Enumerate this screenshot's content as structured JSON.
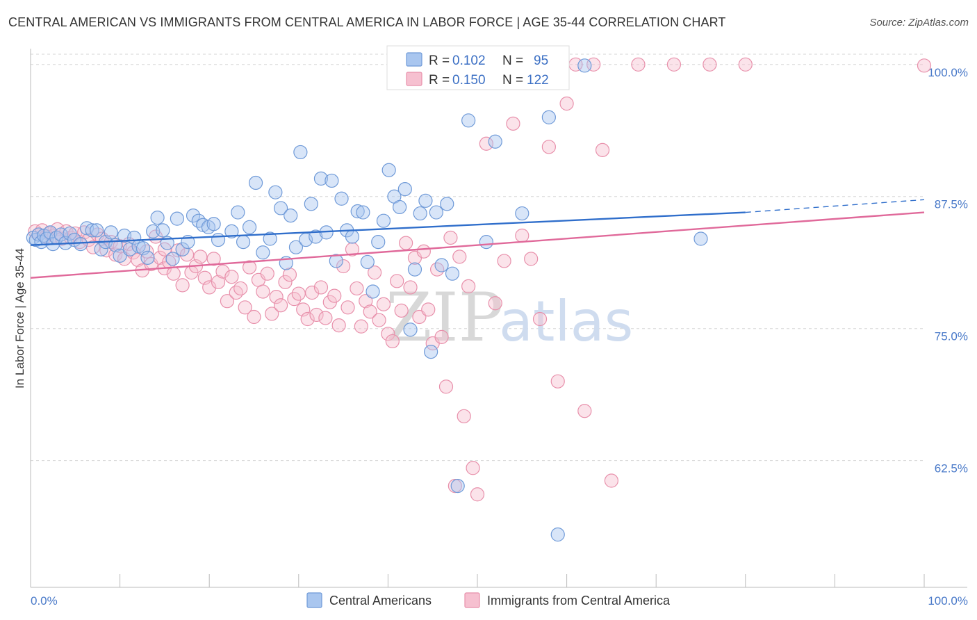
{
  "header": {
    "title": "CENTRAL AMERICAN VS IMMIGRANTS FROM CENTRAL AMERICA IN LABOR FORCE | AGE 35-44 CORRELATION CHART",
    "source": "Source: ZipAtlas.com"
  },
  "watermark": {
    "zip": "ZIP",
    "atlas": "atlas"
  },
  "colors": {
    "blue_fill": "#a9c6ef",
    "blue_stroke": "#6f9ad8",
    "blue_line": "#2f6ecb",
    "pink_fill": "#f6c0d0",
    "pink_stroke": "#e890ab",
    "pink_line": "#e0699a",
    "grid": "#d6d6d6",
    "tick_label": "#4a7ac9"
  },
  "chart_data": {
    "type": "scatter",
    "title": "CENTRAL AMERICAN VS IMMIGRANTS FROM CENTRAL AMERICA IN LABOR FORCE | AGE 35-44 CORRELATION CHART",
    "ylabel": "In Labor Force | Age 35-44",
    "xlabel": "",
    "xlim": [
      0,
      100
    ],
    "ylim": [
      50.5,
      101.5
    ],
    "x_tick_labels": [
      {
        "value": 0,
        "label": "0.0%"
      },
      {
        "value": 100,
        "label": "100.0%"
      }
    ],
    "y_tick_labels": [
      {
        "value": 100,
        "label": "100.0%"
      },
      {
        "value": 87.5,
        "label": "87.5%"
      },
      {
        "value": 75,
        "label": "75.0%"
      },
      {
        "value": 62.5,
        "label": "62.5%"
      }
    ],
    "grid": "horizontal dashed",
    "legend_position": "top-center",
    "series": [
      {
        "name": "Central Americans",
        "color": "#a9c6ef",
        "R": "0.102",
        "N": "95",
        "trend": {
          "x": [
            0,
            80
          ],
          "y": [
            82.9,
            86.0
          ],
          "dashed_extension_to": [
            100,
            87.2
          ]
        },
        "points": [
          [
            0.3,
            83.6
          ],
          [
            0.6,
            83.4
          ],
          [
            0.9,
            83.9
          ],
          [
            1.2,
            83.2
          ],
          [
            1.5,
            83.8
          ],
          [
            1.8,
            83.5
          ],
          [
            2.2,
            84.1
          ],
          [
            2.5,
            83.0
          ],
          [
            2.9,
            83.6
          ],
          [
            3.4,
            83.9
          ],
          [
            3.9,
            83.1
          ],
          [
            4.4,
            84.0
          ],
          [
            4.9,
            83.4
          ],
          [
            5.6,
            83.0
          ],
          [
            6.3,
            84.5
          ],
          [
            6.9,
            84.3
          ],
          [
            7.4,
            84.3
          ],
          [
            7.9,
            82.5
          ],
          [
            8.4,
            83.2
          ],
          [
            9.0,
            84.1
          ],
          [
            9.5,
            82.9
          ],
          [
            10.0,
            81.9
          ],
          [
            10.5,
            83.8
          ],
          [
            11.1,
            82.5
          ],
          [
            11.6,
            83.6
          ],
          [
            12.1,
            82.8
          ],
          [
            12.6,
            82.6
          ],
          [
            13.1,
            81.7
          ],
          [
            13.7,
            84.2
          ],
          [
            14.2,
            85.5
          ],
          [
            14.8,
            84.3
          ],
          [
            15.3,
            83.1
          ],
          [
            15.9,
            81.6
          ],
          [
            16.4,
            85.4
          ],
          [
            17.0,
            82.5
          ],
          [
            17.6,
            83.2
          ],
          [
            18.2,
            85.7
          ],
          [
            18.8,
            85.2
          ],
          [
            19.3,
            84.8
          ],
          [
            19.9,
            84.6
          ],
          [
            20.5,
            84.9
          ],
          [
            21.0,
            83.4
          ],
          [
            22.5,
            84.2
          ],
          [
            23.2,
            86.0
          ],
          [
            23.8,
            83.2
          ],
          [
            24.5,
            84.6
          ],
          [
            25.2,
            88.8
          ],
          [
            26.0,
            82.2
          ],
          [
            26.8,
            83.5
          ],
          [
            27.4,
            87.9
          ],
          [
            28.0,
            86.4
          ],
          [
            28.6,
            81.2
          ],
          [
            29.1,
            85.7
          ],
          [
            29.7,
            82.7
          ],
          [
            30.2,
            91.7
          ],
          [
            30.8,
            83.4
          ],
          [
            31.4,
            86.8
          ],
          [
            31.9,
            83.7
          ],
          [
            32.5,
            89.2
          ],
          [
            33.1,
            84.1
          ],
          [
            33.7,
            89.0
          ],
          [
            34.2,
            81.4
          ],
          [
            34.8,
            87.3
          ],
          [
            35.4,
            84.3
          ],
          [
            36.0,
            83.7
          ],
          [
            36.6,
            86.1
          ],
          [
            37.2,
            86.0
          ],
          [
            37.7,
            81.3
          ],
          [
            38.3,
            78.5
          ],
          [
            38.9,
            83.2
          ],
          [
            39.5,
            85.2
          ],
          [
            40.1,
            90.0
          ],
          [
            40.7,
            87.5
          ],
          [
            41.3,
            86.5
          ],
          [
            41.9,
            88.2
          ],
          [
            42.5,
            74.9
          ],
          [
            43.0,
            80.6
          ],
          [
            43.6,
            85.9
          ],
          [
            44.2,
            87.1
          ],
          [
            44.8,
            72.8
          ],
          [
            45.4,
            86.0
          ],
          [
            46.0,
            81.0
          ],
          [
            46.6,
            86.8
          ],
          [
            47.2,
            80.2
          ],
          [
            47.8,
            60.1
          ],
          [
            49.0,
            94.7
          ],
          [
            51.0,
            83.2
          ],
          [
            52.0,
            92.7
          ],
          [
            55.0,
            85.9
          ],
          [
            56.0,
            100.2
          ],
          [
            57.0,
            99.9
          ],
          [
            58.0,
            95.0
          ],
          [
            59.0,
            55.5
          ],
          [
            62.0,
            99.9
          ],
          [
            75.0,
            83.5
          ]
        ]
      },
      {
        "name": "Immigrants from Central America",
        "color": "#f6c0d0",
        "R": "0.150",
        "N": "122",
        "trend": {
          "x": [
            0,
            100
          ],
          "y": [
            79.8,
            86.0
          ]
        },
        "points": [
          [
            0.5,
            84.2
          ],
          [
            0.9,
            83.9
          ],
          [
            1.3,
            84.3
          ],
          [
            1.7,
            83.7
          ],
          [
            2.1,
            84.0
          ],
          [
            2.6,
            83.8
          ],
          [
            3.0,
            84.4
          ],
          [
            3.5,
            83.5
          ],
          [
            4.0,
            84.2
          ],
          [
            4.5,
            83.6
          ],
          [
            5.0,
            84.0
          ],
          [
            5.5,
            83.2
          ],
          [
            6.0,
            84.1
          ],
          [
            6.5,
            83.4
          ],
          [
            7.0,
            82.7
          ],
          [
            7.5,
            83.9
          ],
          [
            8.0,
            83.5
          ],
          [
            8.5,
            82.4
          ],
          [
            9.0,
            83.2
          ],
          [
            9.5,
            82.0
          ],
          [
            10.0,
            82.8
          ],
          [
            10.5,
            81.6
          ],
          [
            11.0,
            83.0
          ],
          [
            11.5,
            82.2
          ],
          [
            12.0,
            81.5
          ],
          [
            12.5,
            80.5
          ],
          [
            13.0,
            82.3
          ],
          [
            13.5,
            81.1
          ],
          [
            14.0,
            83.7
          ],
          [
            14.5,
            81.7
          ],
          [
            15.0,
            80.7
          ],
          [
            15.5,
            81.3
          ],
          [
            16.0,
            80.2
          ],
          [
            16.5,
            82.4
          ],
          [
            17.0,
            79.1
          ],
          [
            17.5,
            82.0
          ],
          [
            18.0,
            80.3
          ],
          [
            18.5,
            80.9
          ],
          [
            19.0,
            81.8
          ],
          [
            19.5,
            79.8
          ],
          [
            20.0,
            78.9
          ],
          [
            20.5,
            81.6
          ],
          [
            21.0,
            79.4
          ],
          [
            21.5,
            80.4
          ],
          [
            22.0,
            77.6
          ],
          [
            22.5,
            79.9
          ],
          [
            23.0,
            78.4
          ],
          [
            23.5,
            78.8
          ],
          [
            24.0,
            77.0
          ],
          [
            24.5,
            80.8
          ],
          [
            25.0,
            76.1
          ],
          [
            25.5,
            79.6
          ],
          [
            26.0,
            78.5
          ],
          [
            26.5,
            80.2
          ],
          [
            27.0,
            76.4
          ],
          [
            27.5,
            78.0
          ],
          [
            28.0,
            77.2
          ],
          [
            28.5,
            79.4
          ],
          [
            29.0,
            80.1
          ],
          [
            29.5,
            77.8
          ],
          [
            30.0,
            78.3
          ],
          [
            30.5,
            76.8
          ],
          [
            31.0,
            75.9
          ],
          [
            31.5,
            78.4
          ],
          [
            32.0,
            76.3
          ],
          [
            32.5,
            78.9
          ],
          [
            33.0,
            76.0
          ],
          [
            33.5,
            77.5
          ],
          [
            34.0,
            78.1
          ],
          [
            34.5,
            75.3
          ],
          [
            35.0,
            80.9
          ],
          [
            35.5,
            77.0
          ],
          [
            36.0,
            82.5
          ],
          [
            36.5,
            78.8
          ],
          [
            37.0,
            75.2
          ],
          [
            37.5,
            77.6
          ],
          [
            38.0,
            76.6
          ],
          [
            38.5,
            80.3
          ],
          [
            39.0,
            75.8
          ],
          [
            39.5,
            77.3
          ],
          [
            40.0,
            74.5
          ],
          [
            40.5,
            73.8
          ],
          [
            41.0,
            79.5
          ],
          [
            41.5,
            76.7
          ],
          [
            42.0,
            83.1
          ],
          [
            42.5,
            78.9
          ],
          [
            43.0,
            81.7
          ],
          [
            43.5,
            76.1
          ],
          [
            44.0,
            82.3
          ],
          [
            44.5,
            76.8
          ],
          [
            45.0,
            73.6
          ],
          [
            45.5,
            80.6
          ],
          [
            46.0,
            74.2
          ],
          [
            46.5,
            69.5
          ],
          [
            47.0,
            83.6
          ],
          [
            47.5,
            60.1
          ],
          [
            48.0,
            81.8
          ],
          [
            48.5,
            66.7
          ],
          [
            49.0,
            79.0
          ],
          [
            49.5,
            61.8
          ],
          [
            50.0,
            59.3
          ],
          [
            51.0,
            92.5
          ],
          [
            52.0,
            77.4
          ],
          [
            53.0,
            81.4
          ],
          [
            54.0,
            94.4
          ],
          [
            55.0,
            83.8
          ],
          [
            56.0,
            81.6
          ],
          [
            57.0,
            75.9
          ],
          [
            58.0,
            92.2
          ],
          [
            59.0,
            70.0
          ],
          [
            60.0,
            96.3
          ],
          [
            61.0,
            100.0
          ],
          [
            62.0,
            67.2
          ],
          [
            63.0,
            100.0
          ],
          [
            64.0,
            91.9
          ],
          [
            65.0,
            60.6
          ],
          [
            68.0,
            100.0
          ],
          [
            72.0,
            100.0
          ],
          [
            76.0,
            100.0
          ],
          [
            80.0,
            100.0
          ],
          [
            100.0,
            99.9
          ],
          [
            15.0,
            82.5
          ]
        ]
      }
    ]
  },
  "legend": {
    "r_label": "R = ",
    "n_label": "N = ",
    "rows": [
      {
        "r": "0.102",
        "n": "95"
      },
      {
        "r": "0.150",
        "n": "122"
      }
    ]
  },
  "bottom_legend": {
    "items": [
      "Central Americans",
      "Immigrants from Central America"
    ]
  }
}
